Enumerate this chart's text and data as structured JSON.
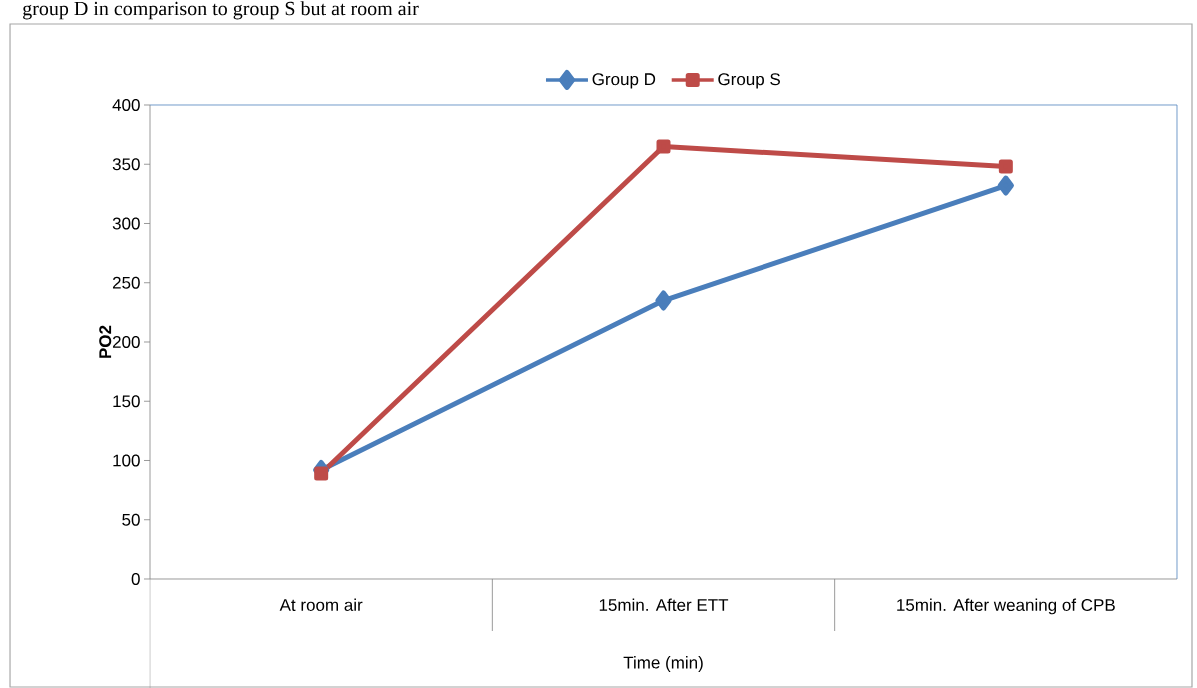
{
  "chart_data": {
    "type": "line",
    "annotations": [
      "group D in comparison to group S but at room air"
    ],
    "xlabel": "Time (min)",
    "ylabel": "PO2",
    "categories": [
      "At room air",
      "15min. After ETT",
      "15min. After weaning of CPB"
    ],
    "series": [
      {
        "name": "Group D",
        "color": "#4a7ebb",
        "marker": "diamond",
        "values": [
          92,
          235,
          332
        ]
      },
      {
        "name": "Group S",
        "color": "#be4b48",
        "marker": "square",
        "values": [
          89,
          365,
          348
        ]
      }
    ],
    "ylim": [
      0,
      400
    ],
    "yticks": [
      0,
      50,
      100,
      150,
      200,
      250,
      300,
      350,
      400
    ],
    "legend": "top"
  }
}
